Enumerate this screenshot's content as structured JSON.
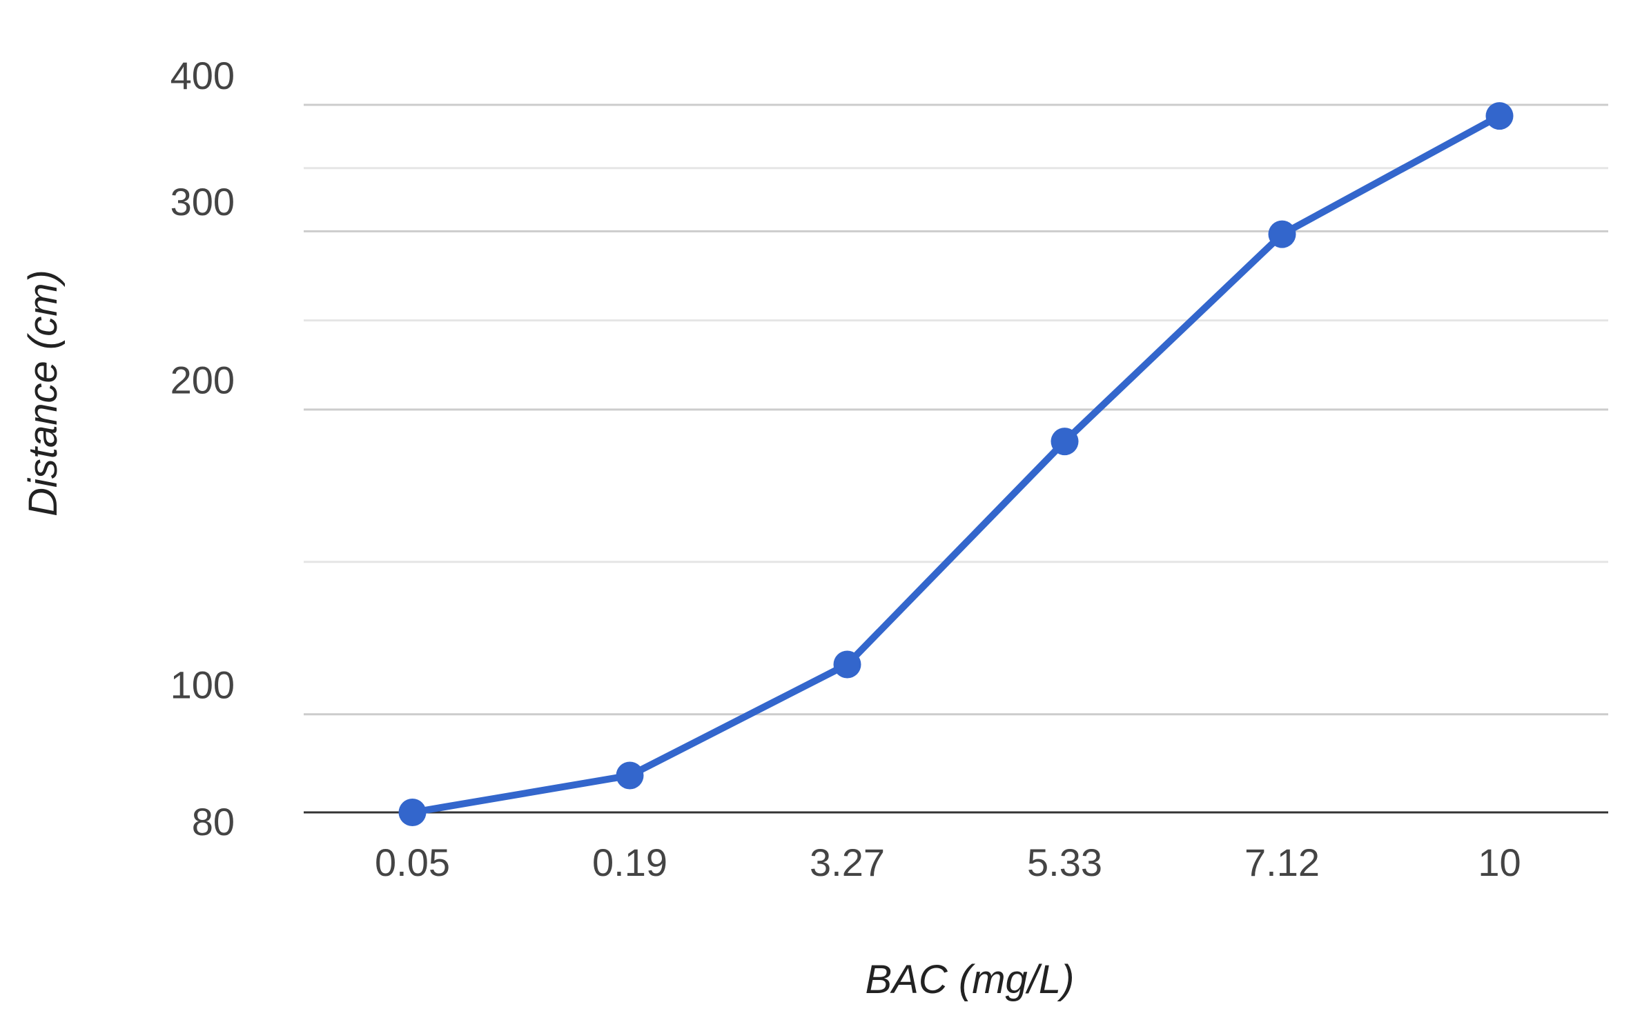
{
  "chart_data": {
    "type": "line",
    "categories": [
      "0.05",
      "0.19",
      "3.27",
      "5.33",
      "7.12",
      "10"
    ],
    "series": [
      {
        "values": [
          80,
          87,
          112,
          186,
          298,
          390
        ],
        "color": "#3366cc"
      }
    ],
    "xlabel": "BAC (mg/L)",
    "ylabel": "Distance (cm)",
    "y_ticks": [
      80,
      100,
      200,
      300,
      400
    ],
    "y_scale": "log",
    "ylim": [
      80,
      420
    ],
    "grid": true,
    "legend": "none",
    "colors": {
      "line": "#3366cc",
      "grid": "#cccccc",
      "minor_grid": "#e5e5e5",
      "baseline": "#333333"
    }
  }
}
